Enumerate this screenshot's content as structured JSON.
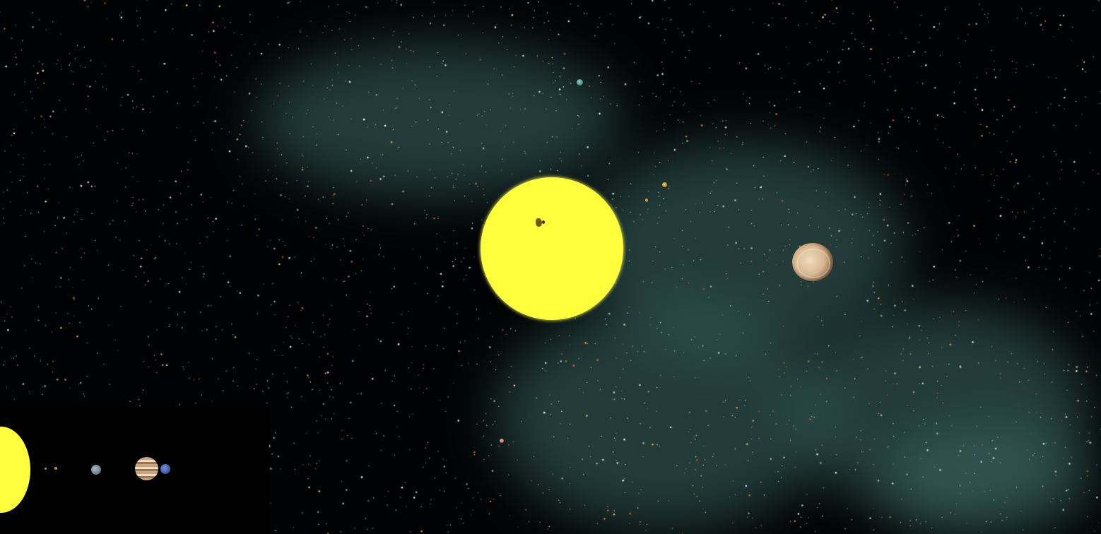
{
  "app": {
    "view": "solar-system-viewer"
  },
  "scene": {
    "background_color": "#010203",
    "nebula_color": "#3e6a66",
    "sun_color": "#ffff3c"
  },
  "bodies": [
    {
      "name": "sun",
      "icon": "sun-icon"
    },
    {
      "name": "small-planet-1",
      "icon": "planet-icon"
    },
    {
      "name": "small-planet-2",
      "icon": "planet-icon"
    },
    {
      "name": "small-planet-3",
      "icon": "planet-icon"
    },
    {
      "name": "small-planet-4",
      "icon": "planet-icon"
    },
    {
      "name": "gas-giant",
      "icon": "planet-icon"
    }
  ],
  "minimap": {
    "background_color": "#000000",
    "bodies": [
      "sun",
      "mercury",
      "venus",
      "earth",
      "jupiter",
      "neptune"
    ]
  }
}
